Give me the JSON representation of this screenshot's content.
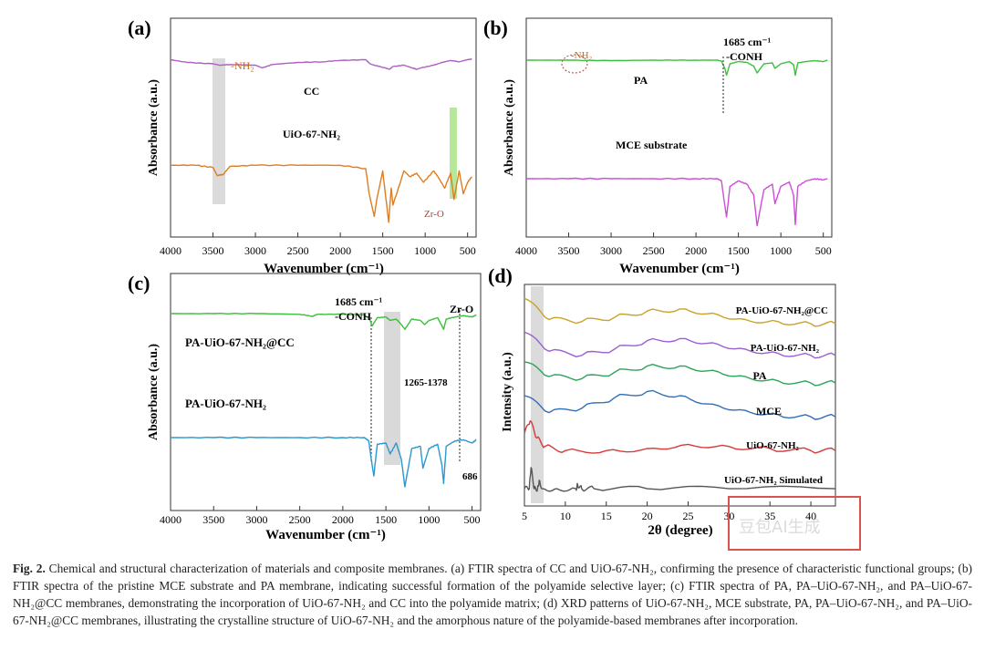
{
  "caption": {
    "label": "Fig. 2.",
    "text": "Chemical and structural characterization of materials and composite membranes. (a) FTIR spectra of CC and UiO-67-NH₂, confirming the presence of characteristic functional groups; (b) FTIR spectra of the pristine MCE substrate and PA membrane, indicating successful formation of the polyamide selective layer; (c) FTIR spectra of PA, PA–UiO-67-NH₂, and PA–UiO-67-NH₂@CC membranes, demonstrating the incorporation of UiO-67-NH₂ and CC into the polyamide matrix; (d) XRD patterns of UiO-67-NH₂, MCE substrate, PA, PA–UiO-67-NH₂, and PA–UiO-67-NH₂@CC membranes, illustrating the crystalline structure of UiO-67-NH₂ and the amorphous nature of the polyamide-based membranes after incorporation."
  },
  "watermark": {
    "text": "豆包AI生成"
  },
  "chart_data": [
    {
      "panel": "(a)",
      "type": "line",
      "xlabel": "Wavenumber (cm⁻¹)",
      "ylabel": "Absorbance (a.u.)",
      "xlim": [
        4000,
        400
      ],
      "x_reversed": true,
      "xticks": [
        "4000",
        "3500",
        "3000",
        "2500",
        "2000",
        "1500",
        "1000",
        "500"
      ],
      "series": [
        {
          "name": "CC",
          "color": "#b05fc4",
          "x": [
            4000,
            3800,
            3500,
            3420,
            3300,
            3000,
            2920,
            2800,
            2500,
            2200,
            2000,
            1700,
            1650,
            1600,
            1500,
            1420,
            1380,
            1250,
            1150,
            1100,
            1050,
            900,
            800,
            700,
            600,
            500,
            450
          ],
          "y": [
            0.86,
            0.82,
            0.8,
            0.78,
            0.79,
            0.78,
            0.74,
            0.79,
            0.82,
            0.83,
            0.85,
            0.86,
            0.8,
            0.78,
            0.75,
            0.72,
            0.76,
            0.78,
            0.74,
            0.72,
            0.74,
            0.78,
            0.82,
            0.85,
            0.83,
            0.86,
            0.87
          ]
        },
        {
          "name": "UiO-67-NH₂",
          "color": "#e07c1f",
          "x": [
            4000,
            3700,
            3500,
            3450,
            3380,
            3300,
            3000,
            2500,
            2000,
            1700,
            1660,
            1600,
            1570,
            1500,
            1430,
            1400,
            1380,
            1250,
            1180,
            1100,
            1020,
            900,
            850,
            770,
            700,
            660,
            600,
            550,
            500,
            450
          ],
          "y": [
            0.55,
            0.55,
            0.53,
            0.46,
            0.47,
            0.54,
            0.55,
            0.55,
            0.55,
            0.52,
            0.3,
            0.1,
            0.25,
            0.5,
            0.05,
            0.35,
            0.2,
            0.5,
            0.45,
            0.48,
            0.4,
            0.5,
            0.45,
            0.35,
            0.48,
            0.25,
            0.5,
            0.3,
            0.4,
            0.45
          ]
        }
      ],
      "annotations": [
        "-NH₂",
        "Zr-O"
      ]
    },
    {
      "panel": "(b)",
      "type": "line",
      "xlabel": "Wavenumber (cm⁻¹)",
      "ylabel": "Absorbance (a.u.)",
      "xlim": [
        4000,
        400
      ],
      "x_reversed": true,
      "xticks": [
        "4000",
        "3500",
        "3000",
        "2500",
        "2000",
        "1500",
        "1000",
        "500"
      ],
      "series": [
        {
          "name": "PA",
          "color": "#3cbf3c",
          "x": [
            4000,
            3500,
            3000,
            2500,
            2000,
            1750,
            1700,
            1660,
            1640,
            1600,
            1500,
            1400,
            1320,
            1280,
            1200,
            1100,
            1070,
            1000,
            900,
            850,
            830,
            800,
            700,
            600,
            500,
            450
          ],
          "y": [
            0.88,
            0.88,
            0.87,
            0.88,
            0.88,
            0.88,
            0.86,
            0.7,
            0.55,
            0.8,
            0.85,
            0.83,
            0.75,
            0.6,
            0.8,
            0.82,
            0.7,
            0.8,
            0.85,
            0.78,
            0.55,
            0.82,
            0.85,
            0.87,
            0.85,
            0.88
          ]
        },
        {
          "name": "MCE substrate",
          "color": "#cc4fd6",
          "x": [
            4000,
            3500,
            3000,
            2500,
            2000,
            1750,
            1700,
            1660,
            1640,
            1600,
            1500,
            1400,
            1320,
            1280,
            1200,
            1100,
            1070,
            1000,
            900,
            850,
            830,
            800,
            700,
            600,
            500,
            450
          ],
          "y": [
            0.45,
            0.45,
            0.45,
            0.45,
            0.45,
            0.45,
            0.43,
            0.2,
            0.1,
            0.38,
            0.43,
            0.4,
            0.3,
            0.02,
            0.35,
            0.4,
            0.22,
            0.38,
            0.42,
            0.3,
            0.03,
            0.38,
            0.43,
            0.45,
            0.44,
            0.45
          ]
        }
      ],
      "annotations": [
        "-NH₂",
        "1685 cm⁻¹",
        "-CONH"
      ]
    },
    {
      "panel": "(c)",
      "type": "line",
      "xlabel": "Wavenumber (cm⁻¹)",
      "ylabel": "Absorbance (a.u.)",
      "xlim": [
        4000,
        400
      ],
      "x_reversed": true,
      "xticks": [
        "4000",
        "3500",
        "3000",
        "2500",
        "2000",
        "1500",
        "1000",
        "500"
      ],
      "series": [
        {
          "name": "PA-UiO-67-NH₂@CC",
          "color": "#3cbf3c",
          "x": [
            4000,
            3500,
            3000,
            2500,
            2350,
            2300,
            2000,
            1750,
            1690,
            1660,
            1600,
            1500,
            1450,
            1380,
            1320,
            1280,
            1200,
            1100,
            1050,
            1000,
            900,
            850,
            830,
            800,
            700,
            600,
            500,
            450
          ],
          "y": [
            0.88,
            0.88,
            0.88,
            0.87,
            0.84,
            0.87,
            0.87,
            0.86,
            0.8,
            0.7,
            0.82,
            0.83,
            0.78,
            0.8,
            0.72,
            0.65,
            0.8,
            0.78,
            0.72,
            0.78,
            0.82,
            0.7,
            0.65,
            0.8,
            0.83,
            0.85,
            0.83,
            0.86
          ]
        },
        {
          "name": "PA-UiO-67-NH₂",
          "color": "#2a98cf",
          "x": [
            4000,
            3500,
            3000,
            2500,
            2000,
            1750,
            1700,
            1660,
            1640,
            1600,
            1500,
            1450,
            1380,
            1320,
            1280,
            1200,
            1100,
            1070,
            1000,
            900,
            850,
            830,
            800,
            700,
            600,
            500,
            450
          ],
          "y": [
            0.5,
            0.5,
            0.5,
            0.5,
            0.5,
            0.5,
            0.47,
            0.25,
            0.15,
            0.44,
            0.45,
            0.35,
            0.45,
            0.3,
            0.05,
            0.4,
            0.42,
            0.22,
            0.4,
            0.44,
            0.25,
            0.08,
            0.42,
            0.47,
            0.48,
            0.45,
            0.48
          ]
        }
      ],
      "annotations": [
        "1685 cm⁻¹",
        "-CONH",
        "Zr-O",
        "1265-1378",
        "686"
      ]
    },
    {
      "panel": "(d)",
      "type": "line",
      "xlabel": "2θ (degree)",
      "ylabel": "Intensity (a.u.)",
      "xlim": [
        5,
        43
      ],
      "xticks": [
        "5",
        "10",
        "15",
        "20",
        "25",
        "30",
        "35",
        "40"
      ],
      "series": [
        {
          "name": "PA-UiO-67-NH₂@CC",
          "color": "#c9a227",
          "x": [
            5,
            8,
            12,
            16,
            20,
            24,
            28,
            32,
            36,
            40,
            43
          ],
          "y": [
            0.96,
            0.86,
            0.85,
            0.87,
            0.9,
            0.91,
            0.89,
            0.86,
            0.85,
            0.84,
            0.84
          ]
        },
        {
          "name": "PA-UiO-67-NH₂",
          "color": "#9a5fd0",
          "x": [
            5,
            8,
            12,
            16,
            20,
            24,
            28,
            32,
            36,
            40,
            43
          ],
          "y": [
            0.8,
            0.71,
            0.69,
            0.72,
            0.76,
            0.77,
            0.75,
            0.72,
            0.7,
            0.69,
            0.69
          ]
        },
        {
          "name": "PA",
          "color": "#2ea35a",
          "x": [
            5,
            8,
            12,
            16,
            20,
            24,
            28,
            32,
            36,
            40,
            43
          ],
          "y": [
            0.66,
            0.59,
            0.58,
            0.61,
            0.64,
            0.64,
            0.62,
            0.59,
            0.57,
            0.56,
            0.56
          ]
        },
        {
          "name": "MCE",
          "color": "#2f6fb8",
          "x": [
            5,
            8,
            12,
            16,
            20,
            24,
            28,
            32,
            36,
            40,
            43
          ],
          "y": [
            0.5,
            0.42,
            0.44,
            0.49,
            0.52,
            0.5,
            0.46,
            0.43,
            0.41,
            0.4,
            0.4
          ]
        },
        {
          "name": "UiO-67-NH₂",
          "color": "#d63b3b",
          "x": [
            5,
            5.7,
            6.5,
            7.5,
            10,
            15,
            20,
            25,
            30,
            35,
            40,
            43
          ],
          "y": [
            0.32,
            0.38,
            0.3,
            0.26,
            0.24,
            0.24,
            0.25,
            0.27,
            0.26,
            0.25,
            0.24,
            0.24
          ]
        },
        {
          "name": "UiO-67-NH₂ Simulated",
          "color": "#555555",
          "x": [
            5,
            5.6,
            5.8,
            6.2,
            6.6,
            6.8,
            7.2,
            9,
            11.3,
            11.5,
            12,
            13.5,
            20,
            30,
            43
          ],
          "y": [
            0.06,
            0.06,
            0.16,
            0.06,
            0.06,
            0.1,
            0.06,
            0.06,
            0.06,
            0.08,
            0.06,
            0.06,
            0.06,
            0.06,
            0.06
          ]
        }
      ]
    }
  ]
}
